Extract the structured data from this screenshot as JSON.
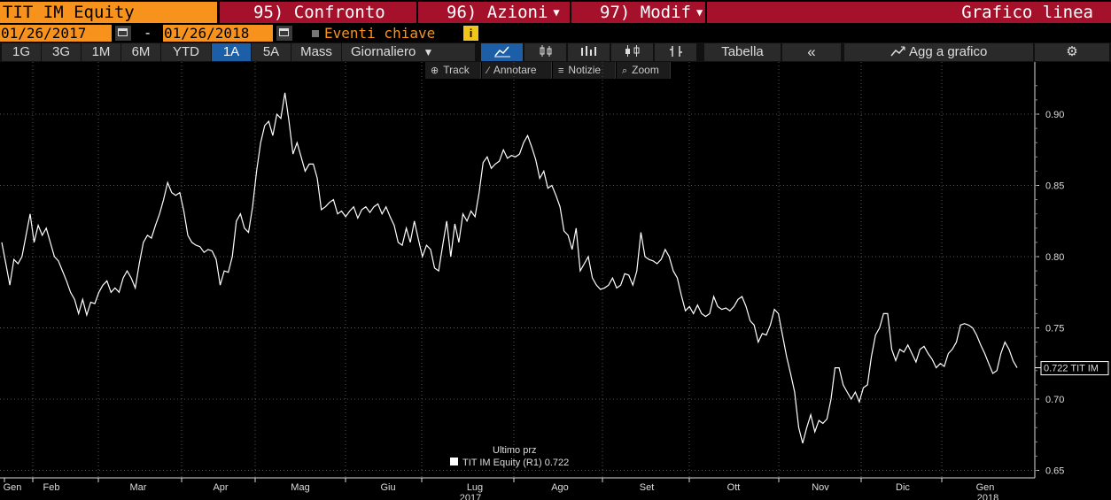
{
  "header": {
    "ticker": "TIT IM Equity",
    "compare": "95) Confronto",
    "actions": "96) Azioni",
    "modify": "97) Modif",
    "graph_type": "Grafico linea"
  },
  "dates": {
    "start": "01/26/2017",
    "separator": "-",
    "end": "01/26/2018",
    "events_label": "Eventi chiave",
    "info_glyph": "i"
  },
  "toolbar": {
    "periods": [
      "1G",
      "3G",
      "1M",
      "6M",
      "YTD",
      "1A",
      "5A",
      "Mass"
    ],
    "selected_period": "1A",
    "frequency": "Giornaliero",
    "frequency_caret": "▼",
    "icons": [
      "line-chart-icon",
      "ohlc-icon",
      "bar-chart-icon",
      "candle-icon",
      "hilo-icon"
    ],
    "table": "Tabella",
    "collapse": "«",
    "add_chart": "Agg a grafico",
    "settings_glyph": "⚙"
  },
  "subtools": {
    "track": "Track",
    "annotate": "Annotare",
    "news": "Notizie",
    "zoom": "Zoom"
  },
  "chart_data": {
    "type": "line",
    "ylim": [
      0.64,
      0.93
    ],
    "yticks": [
      0.9,
      0.85,
      0.8,
      0.75,
      0.7,
      0.65
    ],
    "ytick_labels": [
      "0.90",
      "0.85",
      "0.80",
      "0.75",
      "0.70",
      "0.65"
    ],
    "months": [
      "Gen",
      "Feb",
      "Mar",
      "Apr",
      "Mag",
      "Giu",
      "Lug",
      "Ago",
      "Set",
      "Ott",
      "Nov",
      "Dic",
      "Gen"
    ],
    "year_labels": {
      "Lug": "2017",
      "Gen": "2018"
    },
    "last_value": "0.722 TIT IM",
    "legend_title": "Ultimo prz",
    "legend_entry": "TIT IM Equity  (R1) 0.722",
    "series": [
      {
        "values": [
          0.81,
          0.795,
          0.78,
          0.798,
          0.795,
          0.8,
          0.815,
          0.83,
          0.81,
          0.822,
          0.815,
          0.82,
          0.81,
          0.8,
          0.797,
          0.79,
          0.783,
          0.775,
          0.77,
          0.76,
          0.77,
          0.759,
          0.768,
          0.767,
          0.775,
          0.78,
          0.783,
          0.775,
          0.778,
          0.775,
          0.785,
          0.79,
          0.785,
          0.778,
          0.795,
          0.81,
          0.815,
          0.813,
          0.822,
          0.83,
          0.84,
          0.852,
          0.845,
          0.843,
          0.845,
          0.832,
          0.815,
          0.81,
          0.808,
          0.807,
          0.803,
          0.805,
          0.804,
          0.798,
          0.78,
          0.79,
          0.789,
          0.8,
          0.825,
          0.83,
          0.82,
          0.817,
          0.835,
          0.86,
          0.88,
          0.892,
          0.895,
          0.885,
          0.9,
          0.897,
          0.915,
          0.895,
          0.872,
          0.88,
          0.87,
          0.86,
          0.865,
          0.865,
          0.855,
          0.833,
          0.835,
          0.838,
          0.84,
          0.83,
          0.832,
          0.828,
          0.832,
          0.835,
          0.827,
          0.833,
          0.835,
          0.831,
          0.835,
          0.837,
          0.83,
          0.835,
          0.828,
          0.822,
          0.81,
          0.808,
          0.82,
          0.81,
          0.825,
          0.812,
          0.8,
          0.808,
          0.805,
          0.792,
          0.79,
          0.808,
          0.825,
          0.8,
          0.823,
          0.81,
          0.83,
          0.825,
          0.832,
          0.828,
          0.845,
          0.866,
          0.87,
          0.862,
          0.865,
          0.867,
          0.875,
          0.869,
          0.871,
          0.87,
          0.872,
          0.88,
          0.885,
          0.877,
          0.868,
          0.855,
          0.86,
          0.848,
          0.85,
          0.843,
          0.835,
          0.818,
          0.815,
          0.805,
          0.82,
          0.79,
          0.795,
          0.8,
          0.785,
          0.78,
          0.777,
          0.778,
          0.78,
          0.785,
          0.778,
          0.78,
          0.788,
          0.787,
          0.78,
          0.79,
          0.817,
          0.8,
          0.798,
          0.797,
          0.795,
          0.798,
          0.805,
          0.8,
          0.79,
          0.785,
          0.773,
          0.762,
          0.765,
          0.76,
          0.766,
          0.76,
          0.758,
          0.76,
          0.772,
          0.765,
          0.763,
          0.764,
          0.762,
          0.765,
          0.77,
          0.772,
          0.765,
          0.755,
          0.752,
          0.74,
          0.746,
          0.745,
          0.752,
          0.763,
          0.76,
          0.745,
          0.73,
          0.718,
          0.705,
          0.68,
          0.669,
          0.68,
          0.689,
          0.677,
          0.685,
          0.683,
          0.686,
          0.7,
          0.722,
          0.722,
          0.71,
          0.705,
          0.7,
          0.705,
          0.698,
          0.708,
          0.71,
          0.73,
          0.745,
          0.75,
          0.76,
          0.76,
          0.735,
          0.727,
          0.735,
          0.733,
          0.738,
          0.732,
          0.726,
          0.735,
          0.737,
          0.732,
          0.728,
          0.722,
          0.725,
          0.723,
          0.732,
          0.735,
          0.74,
          0.752,
          0.753,
          0.752,
          0.75,
          0.745,
          0.738,
          0.732,
          0.725,
          0.718,
          0.72,
          0.732,
          0.74,
          0.735,
          0.727,
          0.722
        ]
      }
    ]
  }
}
